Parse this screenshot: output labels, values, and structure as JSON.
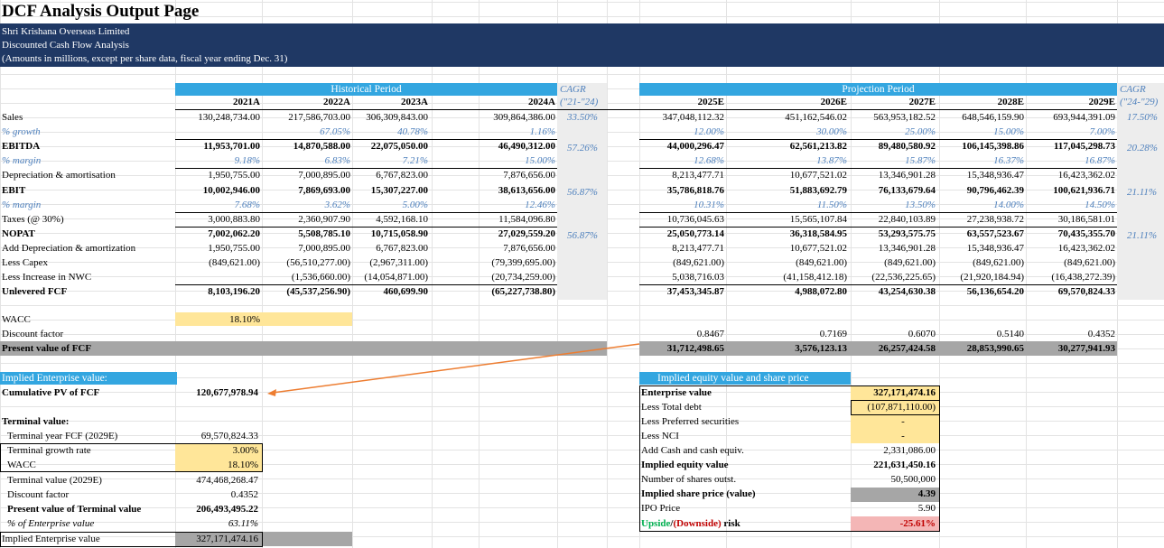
{
  "header": {
    "title": "DCF Analysis Output Page",
    "company": "Shri Krishana Overseas Limited",
    "subtitle": "Discounted Cash Flow Analysis",
    "note": "(Amounts in millions, except per share data, fiscal year ending Dec. 31)"
  },
  "colors": {
    "navy": "#1f3864",
    "bar": "#33a6e0",
    "italic_blue": "#4f81bd",
    "yellow": "#ffe699",
    "gray": "#a6a6a6"
  },
  "table": {
    "historical_label": "Historical Period",
    "projection_label": "Projection Period",
    "cagr_label": "CAGR",
    "cagr_hist_range": "(\"21-\"24)",
    "cagr_proj_range": "(\"24-\"29)",
    "years": [
      "2021A",
      "2022A",
      "2023A",
      "2024A",
      "2025E",
      "2026E",
      "2027E",
      "2028E",
      "2029E"
    ],
    "rows": [
      {
        "label": "Sales",
        "values": [
          "130,248,734.00",
          "217,586,703.00",
          "306,309,843.00",
          "309,864,386.00",
          "347,048,112.32",
          "451,162,546.02",
          "563,953,182.52",
          "648,546,159.90",
          "693,944,391.09"
        ],
        "cagr1": "33.50%",
        "cagr2": "17.50%"
      },
      {
        "label": "% growth",
        "values": [
          "",
          "67.05%",
          "40.78%",
          "1.16%",
          "12.00%",
          "30.00%",
          "25.00%",
          "15.00%",
          "7.00%"
        ]
      },
      {
        "label": "EBITDA",
        "values": [
          "11,953,701.00",
          "14,870,588.00",
          "22,075,050.00",
          "46,490,312.00",
          "44,000,296.47",
          "62,561,213.82",
          "89,480,580.92",
          "106,145,398.86",
          "117,045,298.73"
        ],
        "cagr1": "57.26%",
        "cagr2": "20.28%"
      },
      {
        "label": "% margin",
        "values": [
          "9.18%",
          "6.83%",
          "7.21%",
          "15.00%",
          "12.68%",
          "13.87%",
          "15.87%",
          "16.37%",
          "16.87%"
        ]
      },
      {
        "label": "Depreciation & amortisation",
        "values": [
          "1,950,755.00",
          "7,000,895.00",
          "6,767,823.00",
          "7,876,656.00",
          "8,213,477.71",
          "10,677,521.02",
          "13,346,901.28",
          "15,348,936.47",
          "16,423,362.02"
        ]
      },
      {
        "label": "EBIT",
        "values": [
          "10,002,946.00",
          "7,869,693.00",
          "15,307,227.00",
          "38,613,656.00",
          "35,786,818.76",
          "51,883,692.79",
          "76,133,679.64",
          "90,796,462.39",
          "100,621,936.71"
        ],
        "cagr1": "56.87%",
        "cagr2": "21.11%"
      },
      {
        "label": "% margin",
        "values": [
          "7.68%",
          "3.62%",
          "5.00%",
          "12.46%",
          "10.31%",
          "11.50%",
          "13.50%",
          "14.00%",
          "14.50%"
        ]
      },
      {
        "label": "Taxes (@ 30%)",
        "values": [
          "3,000,883.80",
          "2,360,907.90",
          "4,592,168.10",
          "11,584,096.80",
          "10,736,045.63",
          "15,565,107.84",
          "22,840,103.89",
          "27,238,938.72",
          "30,186,581.01"
        ]
      },
      {
        "label": "NOPAT",
        "values": [
          "7,002,062.20",
          "5,508,785.10",
          "10,715,058.90",
          "27,029,559.20",
          "25,050,773.14",
          "36,318,584.95",
          "53,293,575.75",
          "63,557,523.67",
          "70,435,355.70"
        ],
        "cagr1": "56.87%",
        "cagr2": "21.11%"
      },
      {
        "label": "Add Depreciation & amortization",
        "values": [
          "1,950,755.00",
          "7,000,895.00",
          "6,767,823.00",
          "7,876,656.00",
          "8,213,477.71",
          "10,677,521.02",
          "13,346,901.28",
          "15,348,936.47",
          "16,423,362.02"
        ]
      },
      {
        "label": "Less Capex",
        "values": [
          "(849,621.00)",
          "(56,510,277.00)",
          "(2,967,311.00)",
          "(79,399,695.00)",
          "(849,621.00)",
          "(849,621.00)",
          "(849,621.00)",
          "(849,621.00)",
          "(849,621.00)"
        ]
      },
      {
        "label": "Less Increase in NWC",
        "values": [
          "",
          "(1,536,660.00)",
          "(14,054,871.00)",
          "(20,734,259.00)",
          "5,038,716.03",
          "(41,158,412.18)",
          "(22,536,225.65)",
          "(21,920,184.94)",
          "(16,438,272.39)"
        ]
      },
      {
        "label": "Unlevered FCF",
        "values": [
          "8,103,196.20",
          "(45,537,256.90)",
          "460,699.90",
          "(65,227,738.80)",
          "37,453,345.87",
          "4,988,072.80",
          "43,254,630.38",
          "56,136,654.20",
          "69,570,824.33"
        ]
      }
    ]
  },
  "discount": {
    "wacc_label": "WACC",
    "wacc": "18.10%",
    "factor_label": "Discount factor",
    "factors": [
      "0.8467",
      "0.7169",
      "0.6070",
      "0.5140",
      "0.4352"
    ],
    "pv_label": "Present value of FCF",
    "pvs": [
      "31,712,498.65",
      "3,576,123.13",
      "26,257,424.58",
      "28,853,990.65",
      "30,277,941.93"
    ]
  },
  "ev": {
    "header": "Implied Enterprise value:",
    "cum_label": "Cumulative PV of FCF",
    "cum_value": "120,677,978.94",
    "terminal_label": "Terminal value:",
    "tv_fcf_label": "Terminal year FCF (2029E)",
    "tv_fcf": "69,570,824.33",
    "growth_label": "Terminal growth rate",
    "growth": "3.00%",
    "wacc_label": "WACC",
    "wacc": "18.10%",
    "tv_label": "Terminal value (2029E)",
    "tv": "474,468,268.47",
    "df_label": "Discount factor",
    "df": "0.4352",
    "pvtv_label": "Present value of Terminal value",
    "pvtv": "206,493,495.22",
    "pct_label": "% of Enterprise value",
    "pct": "63.11%",
    "iev_label": "Implied Enterprise value",
    "iev": "327,171,474.16"
  },
  "equity": {
    "header": "Implied equity value and share price",
    "rows": [
      {
        "label": "Enterprise value",
        "value": "327,171,474.16",
        "bold": true
      },
      {
        "label": "Less Total debt",
        "value": "(107,871,110.00)"
      },
      {
        "label": "Less Preferred securities",
        "value": "-"
      },
      {
        "label": "Less NCI",
        "value": "-"
      },
      {
        "label": "Add Cash and cash equiv.",
        "value": "2,331,086.00"
      },
      {
        "label": "Implied equity value",
        "value": "221,631,450.16",
        "bold": true
      },
      {
        "label": "Number of shares outst.",
        "value": "50,500,000"
      },
      {
        "label": "Implied share price (value)",
        "value": "4.39",
        "bold": true
      },
      {
        "label": "IPO Price",
        "value": "5.90"
      }
    ],
    "upside_word": "Upside",
    "slash": "/",
    "downside_word": "(Downside)",
    "risk_word": " risk",
    "upside_value": "-25.61%"
  }
}
